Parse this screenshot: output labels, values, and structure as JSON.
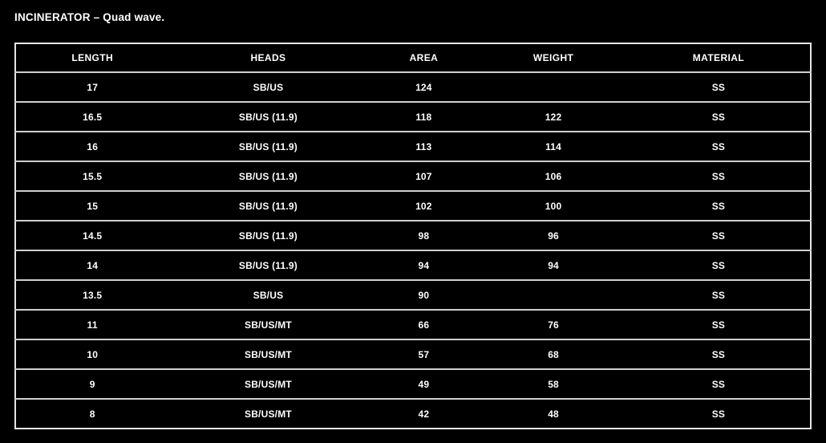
{
  "page": {
    "title": "INCINERATOR – Quad wave."
  },
  "colors": {
    "background": "#000000",
    "text": "#ffffff",
    "border_outer": "#e6e6e6",
    "border_row": "#cfcfcf"
  },
  "chart_data": {
    "type": "table",
    "title": "INCINERATOR – Quad wave.",
    "columns": [
      "LENGTH",
      "HEADS",
      "AREA",
      "WEIGHT",
      "MATERIAL"
    ],
    "rows": [
      [
        "17",
        "SB/US",
        "124",
        "",
        "SS"
      ],
      [
        "16.5",
        "SB/US (11.9)",
        "118",
        "122",
        "SS"
      ],
      [
        "16",
        "SB/US (11.9)",
        "113",
        "114",
        "SS"
      ],
      [
        "15.5",
        "SB/US (11.9)",
        "107",
        "106",
        "SS"
      ],
      [
        "15",
        "SB/US (11.9)",
        "102",
        "100",
        "SS"
      ],
      [
        "14.5",
        "SB/US (11.9)",
        "98",
        "96",
        "SS"
      ],
      [
        "14",
        "SB/US (11.9)",
        "94",
        "94",
        "SS"
      ],
      [
        "13.5",
        "SB/US",
        "90",
        "",
        "SS"
      ],
      [
        "11",
        "SB/US/MT",
        "66",
        "76",
        "SS"
      ],
      [
        "10",
        "SB/US/MT",
        "57",
        "68",
        "SS"
      ],
      [
        "9",
        "SB/US/MT",
        "49",
        "58",
        "SS"
      ],
      [
        "8",
        "SB/US/MT",
        "42",
        "48",
        "SS"
      ]
    ]
  }
}
